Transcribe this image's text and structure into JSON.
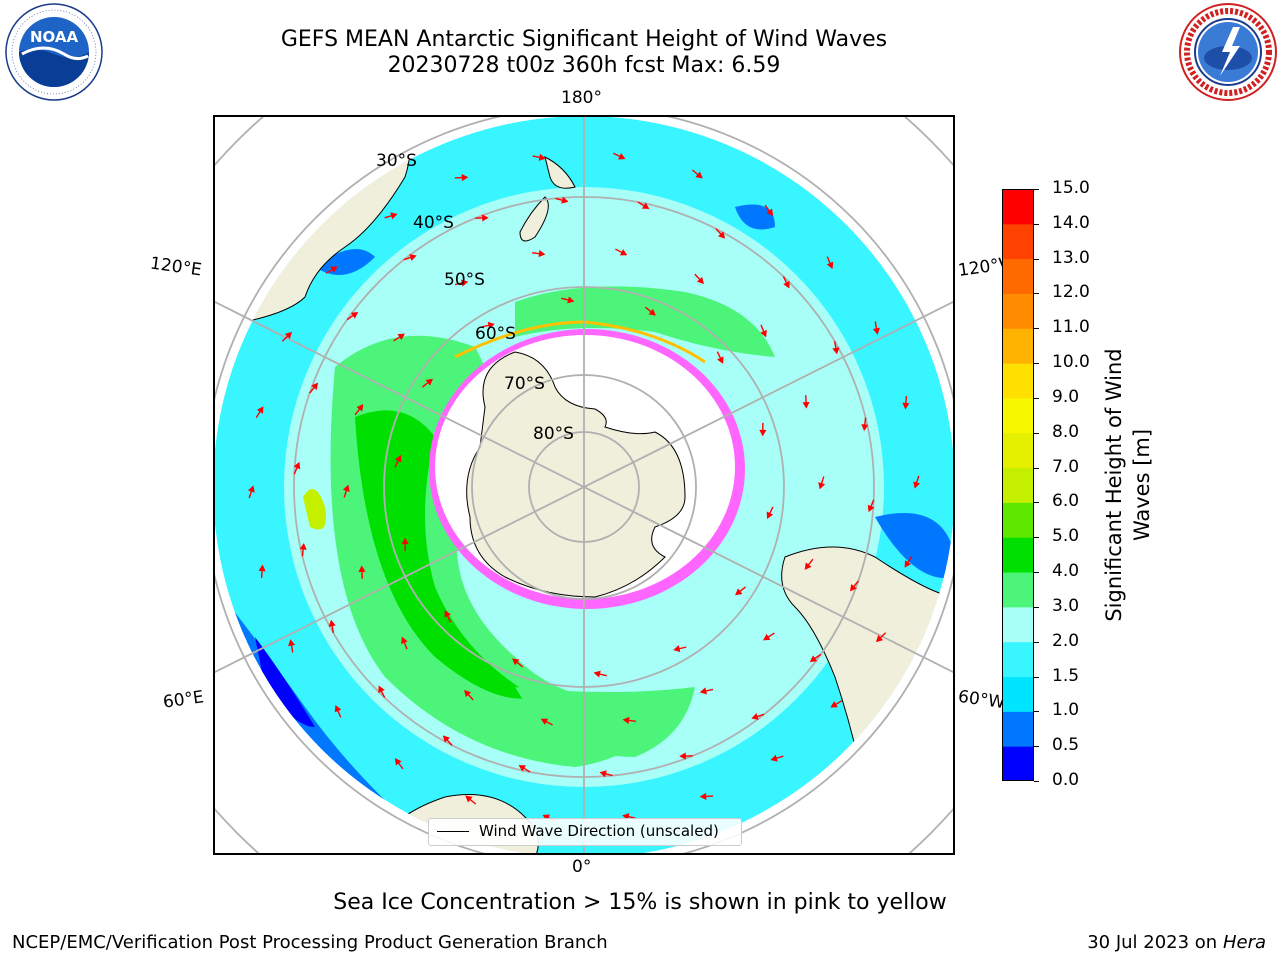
{
  "header": {
    "title_line1": "GEFS MEAN Antarctic Significant Height of Wind Waves",
    "title_line2": "20230728 t00z 360h fcst   Max: 6.59"
  },
  "logos": {
    "left": {
      "icon": "noaa-logo",
      "text": "NOAA",
      "ring_text": "NATIONAL OCEANIC AND ATMOSPHERIC ADMINISTRATION · U.S. DEPARTMENT OF COMMERCE"
    },
    "right": {
      "icon": "national-weather-service-logo",
      "ring_text": "NATIONAL WEATHER SERVICE"
    }
  },
  "map": {
    "projection": "south-polar-stereographic",
    "longitude_labels": {
      "top": "180°",
      "bottom": "0°",
      "left_upper": "120°E",
      "left_lower": "60°E",
      "right_upper": "120°W",
      "right_lower": "60°W"
    },
    "latitude_labels": [
      "30°S",
      "40°S",
      "50°S",
      "60°S",
      "70°S",
      "80°S"
    ],
    "colors": {
      "land": "#efefdb",
      "graticule": "#b0b0b0",
      "arrow": "#ff0000",
      "sea_ice_low": "#ff00ff",
      "sea_ice_high": "#ffff00"
    },
    "legend": {
      "label": "Wind Wave Direction (unscaled)"
    }
  },
  "colorbar": {
    "label": "Significant Height of Wind Waves [m]",
    "label_line1": "Significant Height of Wind",
    "label_line2": "Waves [m]",
    "ticks": [
      "0.0",
      "0.5",
      "1.0",
      "1.5",
      "2.0",
      "3.0",
      "4.0",
      "5.0",
      "6.0",
      "7.0",
      "8.0",
      "9.0",
      "10.0",
      "11.0",
      "12.0",
      "13.0",
      "14.0",
      "15.0"
    ],
    "colors": [
      "#0000ff",
      "#0077ff",
      "#00e5ff",
      "#38f5ff",
      "#a8fff8",
      "#4cf57a",
      "#00e000",
      "#5ee800",
      "#c4f000",
      "#e5f000",
      "#f7f700",
      "#ffe000",
      "#ffb300",
      "#ff8c00",
      "#ff6a00",
      "#ff4200",
      "#ff0000"
    ]
  },
  "notes": {
    "sea_ice": "Sea Ice Concentration > 15% is shown in pink to yellow"
  },
  "footer": {
    "left": "NCEP/EMC/Verification Post Processing Product Generation Branch",
    "right_date": "30 Jul 2023 on ",
    "right_machine": "Hera"
  }
}
